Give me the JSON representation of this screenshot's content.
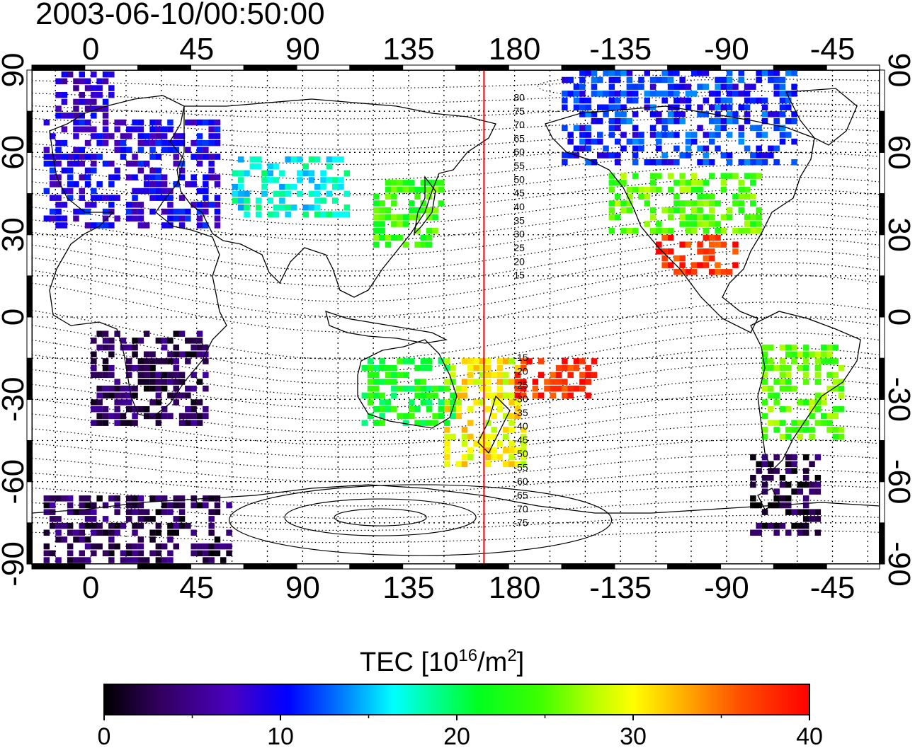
{
  "title": "2003-06-10/00:50:00",
  "map": {
    "lon_ticks_top": [
      "0",
      "45",
      "90",
      "135",
      "180",
      "-135",
      "-90",
      "-45"
    ],
    "lon_ticks_bottom": [
      "0",
      "45",
      "90",
      "135",
      "180",
      "-135",
      "-90",
      "-45"
    ],
    "lat_ticks_left": [
      "90",
      "60",
      "30",
      "0",
      "-30",
      "-60",
      "-90"
    ],
    "lat_ticks_right": [
      "90",
      "60",
      "30",
      "0",
      "-30",
      "-60",
      "-90"
    ],
    "contour_labels": [
      "80",
      "75",
      "70",
      "65",
      "60",
      "55",
      "50",
      "45",
      "40",
      "35",
      "30",
      "25",
      "20",
      "15",
      "-15",
      "-20",
      "-25",
      "-30",
      "-35",
      "-40",
      "-45",
      "-50",
      "-55",
      "-60",
      "-65",
      "-70",
      "-75"
    ],
    "line_lon": 167,
    "grid": true
  },
  "colorbar": {
    "label_main": "TEC  [10",
    "label_sup1": "16",
    "label_mid": "/m",
    "label_sup2": "2",
    "label_end": "]",
    "ticks": [
      "0",
      "10",
      "20",
      "30",
      "40"
    ],
    "range": [
      0,
      40
    ],
    "colors": [
      "#000000",
      "#3c0070",
      "#4400b0",
      "#0000ff",
      "#0090ff",
      "#00ffff",
      "#00ff60",
      "#00ff00",
      "#b0ff00",
      "#ffff00",
      "#ff9000",
      "#ff2000",
      "#ff0000"
    ]
  },
  "chart_data": {
    "type": "heatmap",
    "title": "2003-06-10/00:50:00",
    "xlim": [
      -25,
      335
    ],
    "ylim": [
      -90,
      90
    ],
    "units": "TEC [10^16/m^2]",
    "patches": [
      {
        "lon": [
          -20,
          55
        ],
        "lat": [
          32,
          72
        ],
        "tec": 9
      },
      {
        "lon": [
          -15,
          10
        ],
        "lat": [
          72,
          88
        ],
        "tec": 8
      },
      {
        "lon": [
          60,
          110
        ],
        "lat": [
          36,
          58
        ],
        "tec": 17
      },
      {
        "lon": [
          120,
          150
        ],
        "lat": [
          25,
          50
        ],
        "tec": 24
      },
      {
        "lon": [
          220,
          285
        ],
        "lat": [
          30,
          52
        ],
        "tec": 25
      },
      {
        "lon": [
          240,
          275
        ],
        "lat": [
          15,
          30
        ],
        "tec": 38
      },
      {
        "lon": [
          200,
          300
        ],
        "lat": [
          55,
          88
        ],
        "tec": 11
      },
      {
        "lon": [
          150,
          185
        ],
        "lat": [
          -55,
          -15
        ],
        "tec": 30
      },
      {
        "lon": [
          115,
          155
        ],
        "lat": [
          -40,
          -15
        ],
        "tec": 22
      },
      {
        "lon": [
          285,
          320
        ],
        "lat": [
          -45,
          -10
        ],
        "tec": 25
      },
      {
        "lon": [
          -20,
          60
        ],
        "lat": [
          -90,
          -65
        ],
        "tec": 3
      },
      {
        "lon": [
          0,
          50
        ],
        "lat": [
          -40,
          -5
        ],
        "tec": 3
      },
      {
        "lon": [
          280,
          310
        ],
        "lat": [
          -80,
          -50
        ],
        "tec": 2
      },
      {
        "lon": [
          180,
          215
        ],
        "lat": [
          -30,
          -15
        ],
        "tec": 38
      }
    ]
  }
}
